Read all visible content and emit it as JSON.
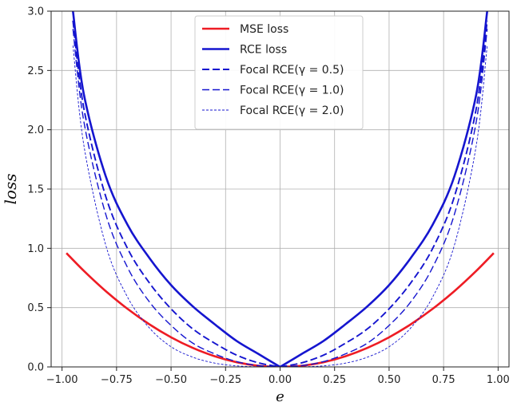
{
  "chart_data": {
    "type": "line",
    "xlabel": "e",
    "ylabel": "loss",
    "xlim": [
      -1.05,
      1.05
    ],
    "ylim": [
      0,
      3
    ],
    "xticks": [
      -1.0,
      -0.75,
      -0.5,
      -0.25,
      0.0,
      0.25,
      0.5,
      0.75,
      1.0
    ],
    "xtick_labels": [
      "−1.00",
      "−0.75",
      "−0.50",
      "−0.25",
      "0.00",
      "0.25",
      "0.50",
      "0.75",
      "1.00"
    ],
    "yticks": [
      0.0,
      0.5,
      1.0,
      1.5,
      2.0,
      2.5,
      3.0
    ],
    "ytick_labels": [
      "0.0",
      "0.5",
      "1.0",
      "1.5",
      "2.0",
      "2.5",
      "3.0"
    ],
    "grid": true,
    "legend_position": "top-center",
    "series": [
      {
        "name": "MSE loss",
        "color": "#ee1c24",
        "style": "solid",
        "x": [
          -0.98,
          -0.9,
          -0.8,
          -0.7,
          -0.6,
          -0.5,
          -0.4,
          -0.3,
          -0.2,
          -0.1,
          0.0,
          0.1,
          0.2,
          0.3,
          0.4,
          0.5,
          0.6,
          0.7,
          0.8,
          0.9,
          0.98
        ],
        "y": [
          0.96,
          0.81,
          0.64,
          0.49,
          0.36,
          0.25,
          0.16,
          0.09,
          0.04,
          0.01,
          0.0,
          0.01,
          0.04,
          0.09,
          0.16,
          0.25,
          0.36,
          0.49,
          0.64,
          0.81,
          0.96
        ]
      },
      {
        "name": "RCE loss",
        "color": "#1515cf",
        "style": "solid",
        "x": [
          -0.95,
          -0.9,
          -0.8,
          -0.7,
          -0.6,
          -0.5,
          -0.4,
          -0.3,
          -0.2,
          -0.1,
          0.0,
          0.1,
          0.2,
          0.3,
          0.4,
          0.5,
          0.6,
          0.7,
          0.8,
          0.9,
          0.95
        ],
        "y": [
          3.0,
          2.3,
          1.61,
          1.2,
          0.92,
          0.69,
          0.51,
          0.36,
          0.22,
          0.11,
          0.0,
          0.11,
          0.22,
          0.36,
          0.51,
          0.69,
          0.92,
          1.2,
          1.61,
          2.3,
          3.0
        ]
      },
      {
        "name": "Focal RCE(γ = 0.5)",
        "color": "#1515cf",
        "style": "dashed",
        "x": [
          -0.95,
          -0.9,
          -0.8,
          -0.7,
          -0.6,
          -0.5,
          -0.4,
          -0.3,
          -0.2,
          -0.1,
          0.0,
          0.1,
          0.2,
          0.3,
          0.4,
          0.5,
          0.6,
          0.7,
          0.8,
          0.9,
          0.95
        ],
        "y": [
          2.92,
          2.18,
          1.44,
          1.0,
          0.71,
          0.49,
          0.32,
          0.2,
          0.1,
          0.035,
          0.0,
          0.035,
          0.1,
          0.2,
          0.32,
          0.49,
          0.71,
          1.0,
          1.44,
          2.18,
          2.92
        ]
      },
      {
        "name": "Focal RCE(γ = 1.0)",
        "color": "#1515cf",
        "style": "dashed",
        "x": [
          -0.95,
          -0.9,
          -0.8,
          -0.7,
          -0.6,
          -0.5,
          -0.4,
          -0.3,
          -0.2,
          -0.1,
          0.0,
          0.1,
          0.2,
          0.3,
          0.4,
          0.5,
          0.6,
          0.7,
          0.8,
          0.9,
          0.95
        ],
        "y": [
          2.85,
          2.07,
          1.29,
          0.84,
          0.55,
          0.35,
          0.2,
          0.11,
          0.045,
          0.011,
          0.0,
          0.011,
          0.045,
          0.11,
          0.2,
          0.35,
          0.55,
          0.84,
          1.29,
          2.07,
          2.85
        ]
      },
      {
        "name": "Focal RCE(γ = 2.0)",
        "color": "#1515cf",
        "style": "dotted",
        "x": [
          -0.95,
          -0.9,
          -0.8,
          -0.7,
          -0.6,
          -0.5,
          -0.4,
          -0.3,
          -0.2,
          -0.1,
          0.0,
          0.1,
          0.2,
          0.3,
          0.4,
          0.5,
          0.6,
          0.7,
          0.8,
          0.9,
          0.95
        ],
        "y": [
          2.71,
          1.87,
          1.03,
          0.59,
          0.33,
          0.17,
          0.082,
          0.032,
          0.009,
          0.001,
          0.0,
          0.001,
          0.009,
          0.032,
          0.082,
          0.17,
          0.33,
          0.59,
          1.03,
          1.87,
          2.71
        ]
      }
    ]
  }
}
